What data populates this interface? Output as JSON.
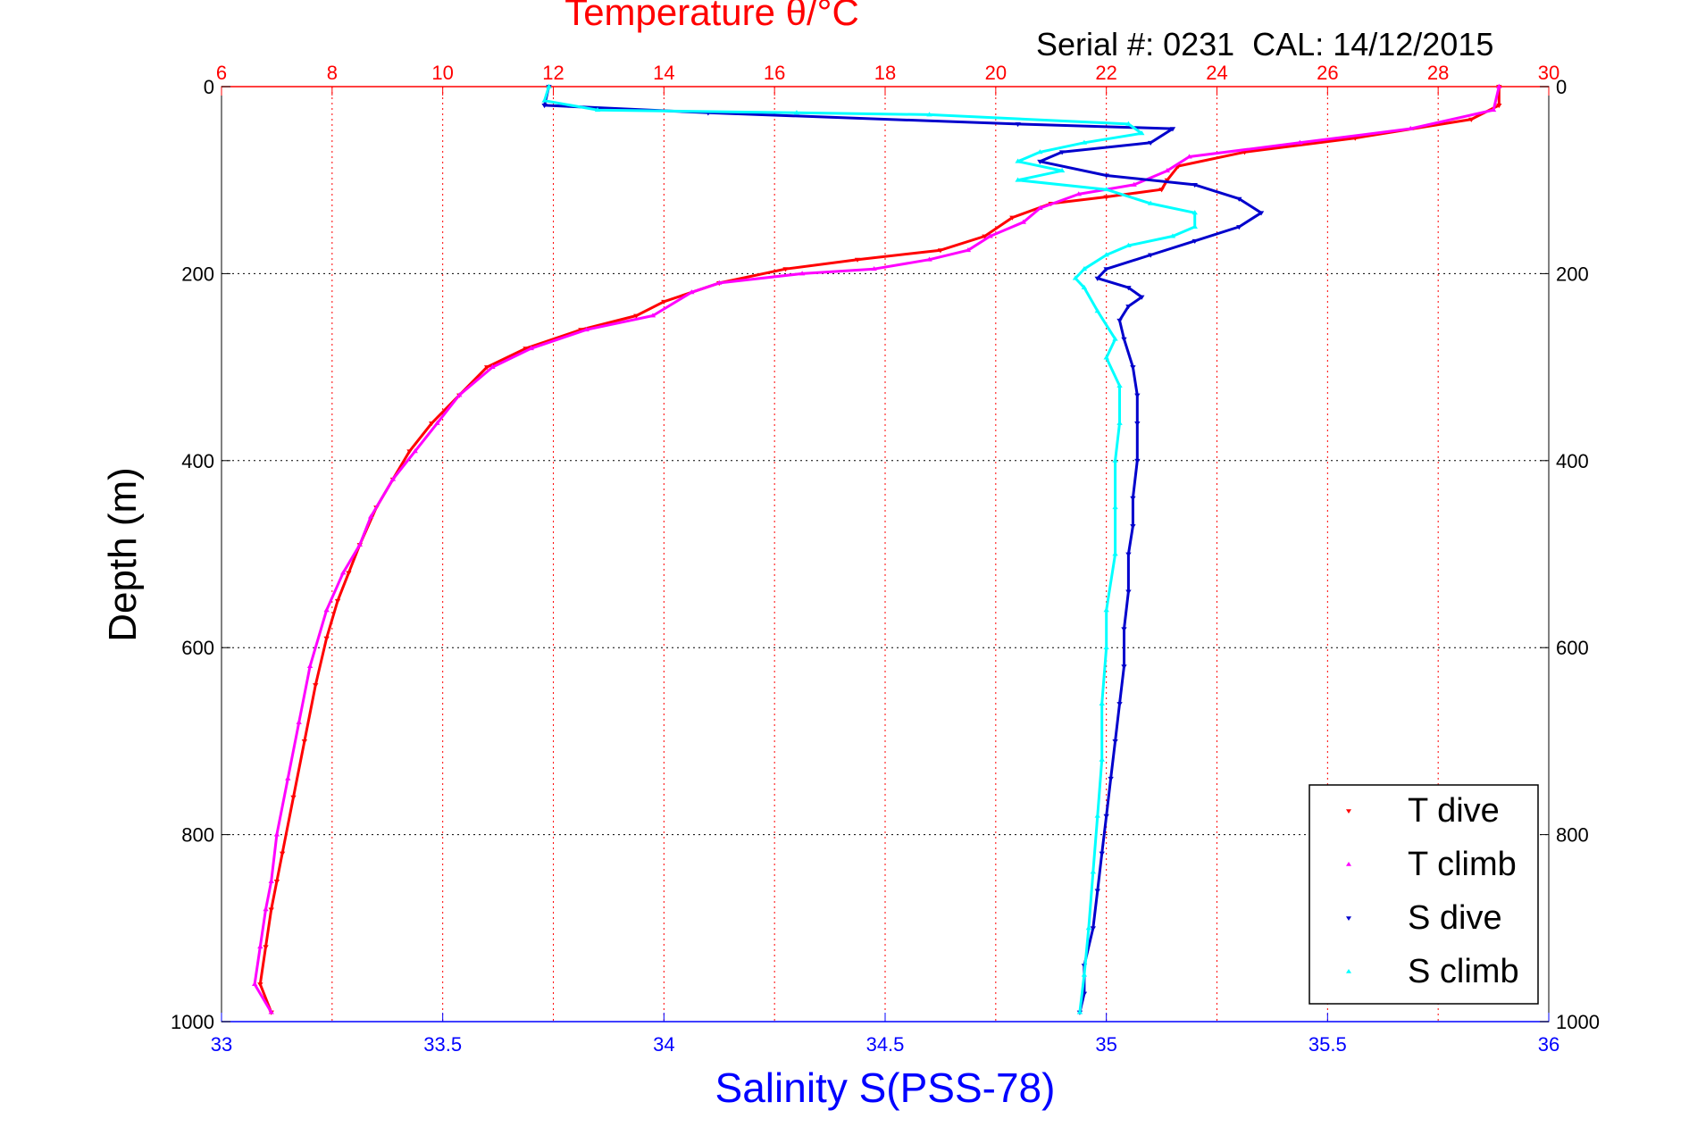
{
  "serial_label": "Serial #: 0231  CAL: 14/12/2015",
  "colors": {
    "T_dive": "#ff0000",
    "T_climb": "#ff00ff",
    "S_dive": "#0000cc",
    "S_climb": "#00ffff",
    "temperature_axis": "#ff0000",
    "salinity_axis": "#0000ff",
    "depth_axis": "#000000"
  },
  "chart_data": {
    "type": "scatter",
    "title": "Temperature θ/°C",
    "xlabel": "Salinity S(PSS-78)",
    "ylabel": "Depth (m)",
    "x2label": "Temperature θ/°C",
    "xlim": [
      33,
      36
    ],
    "x2lim": [
      6,
      30
    ],
    "ylim": [
      1000,
      0
    ],
    "y_reversed": true,
    "grid": true,
    "legend_position": "bottom-right",
    "xticks": [
      "33",
      "33.5",
      "34",
      "34.5",
      "35",
      "35.5",
      "36"
    ],
    "x2ticks": [
      "6",
      "8",
      "10",
      "12",
      "14",
      "16",
      "18",
      "20",
      "22",
      "24",
      "26",
      "28",
      "30"
    ],
    "yticks": [
      "0",
      "200",
      "400",
      "600",
      "800",
      "1000"
    ],
    "series": [
      {
        "name": "T dive",
        "axis": "temperature",
        "marker": "triangle-down",
        "points": [
          [
            29.1,
            0
          ],
          [
            29.1,
            20
          ],
          [
            28.6,
            35
          ],
          [
            26.5,
            55
          ],
          [
            24.5,
            70
          ],
          [
            23.3,
            85
          ],
          [
            23.1,
            100
          ],
          [
            23.0,
            110
          ],
          [
            22.0,
            118
          ],
          [
            21.0,
            125
          ],
          [
            20.3,
            140
          ],
          [
            19.8,
            160
          ],
          [
            19.0,
            175
          ],
          [
            17.5,
            185
          ],
          [
            16.2,
            195
          ],
          [
            15.0,
            210
          ],
          [
            14.0,
            230
          ],
          [
            13.5,
            245
          ],
          [
            12.5,
            260
          ],
          [
            11.5,
            280
          ],
          [
            10.8,
            300
          ],
          [
            10.3,
            330
          ],
          [
            9.8,
            360
          ],
          [
            9.4,
            390
          ],
          [
            9.1,
            420
          ],
          [
            8.8,
            450
          ],
          [
            8.5,
            490
          ],
          [
            8.3,
            520
          ],
          [
            8.1,
            550
          ],
          [
            7.9,
            590
          ],
          [
            7.7,
            640
          ],
          [
            7.5,
            700
          ],
          [
            7.3,
            760
          ],
          [
            7.1,
            820
          ],
          [
            7.0,
            850
          ],
          [
            6.9,
            880
          ],
          [
            6.8,
            920
          ],
          [
            6.7,
            960
          ],
          [
            6.9,
            990
          ]
        ]
      },
      {
        "name": "T climb",
        "axis": "temperature",
        "marker": "triangle-up",
        "points": [
          [
            29.1,
            0
          ],
          [
            29.0,
            25
          ],
          [
            27.5,
            45
          ],
          [
            25.5,
            60
          ],
          [
            23.5,
            75
          ],
          [
            23.1,
            90
          ],
          [
            22.5,
            105
          ],
          [
            21.5,
            115
          ],
          [
            20.8,
            130
          ],
          [
            20.5,
            145
          ],
          [
            19.9,
            160
          ],
          [
            19.5,
            175
          ],
          [
            18.8,
            185
          ],
          [
            17.8,
            195
          ],
          [
            16.5,
            200
          ],
          [
            15.0,
            210
          ],
          [
            14.5,
            220
          ],
          [
            13.8,
            245
          ],
          [
            12.6,
            260
          ],
          [
            11.6,
            280
          ],
          [
            10.9,
            300
          ],
          [
            10.3,
            330
          ],
          [
            9.9,
            360
          ],
          [
            9.5,
            390
          ],
          [
            9.1,
            420
          ],
          [
            8.7,
            460
          ],
          [
            8.5,
            490
          ],
          [
            8.2,
            520
          ],
          [
            7.9,
            560
          ],
          [
            7.6,
            620
          ],
          [
            7.4,
            680
          ],
          [
            7.2,
            740
          ],
          [
            7.0,
            800
          ],
          [
            6.9,
            850
          ],
          [
            6.8,
            880
          ],
          [
            6.7,
            920
          ],
          [
            6.6,
            960
          ],
          [
            6.9,
            990
          ]
        ]
      },
      {
        "name": "S dive",
        "axis": "salinity",
        "marker": "triangle-down",
        "points": [
          [
            33.74,
            0
          ],
          [
            33.73,
            20
          ],
          [
            34.1,
            28
          ],
          [
            34.8,
            40
          ],
          [
            35.15,
            45
          ],
          [
            35.1,
            60
          ],
          [
            34.9,
            70
          ],
          [
            34.85,
            80
          ],
          [
            35.0,
            95
          ],
          [
            35.2,
            105
          ],
          [
            35.3,
            120
          ],
          [
            35.35,
            135
          ],
          [
            35.3,
            150
          ],
          [
            35.2,
            165
          ],
          [
            35.1,
            180
          ],
          [
            35.0,
            195
          ],
          [
            34.98,
            205
          ],
          [
            35.05,
            215
          ],
          [
            35.08,
            225
          ],
          [
            35.05,
            235
          ],
          [
            35.03,
            250
          ],
          [
            35.04,
            270
          ],
          [
            35.06,
            300
          ],
          [
            35.07,
            330
          ],
          [
            35.07,
            360
          ],
          [
            35.07,
            400
          ],
          [
            35.06,
            440
          ],
          [
            35.06,
            470
          ],
          [
            35.05,
            500
          ],
          [
            35.05,
            540
          ],
          [
            35.04,
            580
          ],
          [
            35.04,
            620
          ],
          [
            35.03,
            660
          ],
          [
            35.02,
            700
          ],
          [
            35.01,
            740
          ],
          [
            35.0,
            780
          ],
          [
            34.99,
            820
          ],
          [
            34.98,
            860
          ],
          [
            34.97,
            900
          ],
          [
            34.95,
            940
          ],
          [
            34.95,
            970
          ],
          [
            34.94,
            990
          ]
        ]
      },
      {
        "name": "S climb",
        "axis": "salinity",
        "marker": "triangle-up",
        "points": [
          [
            33.74,
            0
          ],
          [
            33.73,
            15
          ],
          [
            33.85,
            25
          ],
          [
            34.3,
            28
          ],
          [
            34.6,
            30
          ],
          [
            35.05,
            40
          ],
          [
            35.08,
            50
          ],
          [
            34.95,
            60
          ],
          [
            34.85,
            70
          ],
          [
            34.8,
            80
          ],
          [
            34.9,
            90
          ],
          [
            34.8,
            100
          ],
          [
            35.0,
            110
          ],
          [
            35.1,
            125
          ],
          [
            35.2,
            135
          ],
          [
            35.2,
            150
          ],
          [
            35.15,
            160
          ],
          [
            35.05,
            170
          ],
          [
            35.0,
            180
          ],
          [
            34.95,
            195
          ],
          [
            34.93,
            205
          ],
          [
            34.95,
            215
          ],
          [
            34.98,
            240
          ],
          [
            35.02,
            270
          ],
          [
            35.0,
            290
          ],
          [
            35.03,
            320
          ],
          [
            35.03,
            360
          ],
          [
            35.02,
            400
          ],
          [
            35.02,
            450
          ],
          [
            35.02,
            500
          ],
          [
            35.0,
            560
          ],
          [
            35.0,
            600
          ],
          [
            34.99,
            660
          ],
          [
            34.99,
            720
          ],
          [
            34.98,
            780
          ],
          [
            34.97,
            840
          ],
          [
            34.96,
            900
          ],
          [
            34.95,
            950
          ],
          [
            34.94,
            990
          ]
        ]
      }
    ]
  }
}
